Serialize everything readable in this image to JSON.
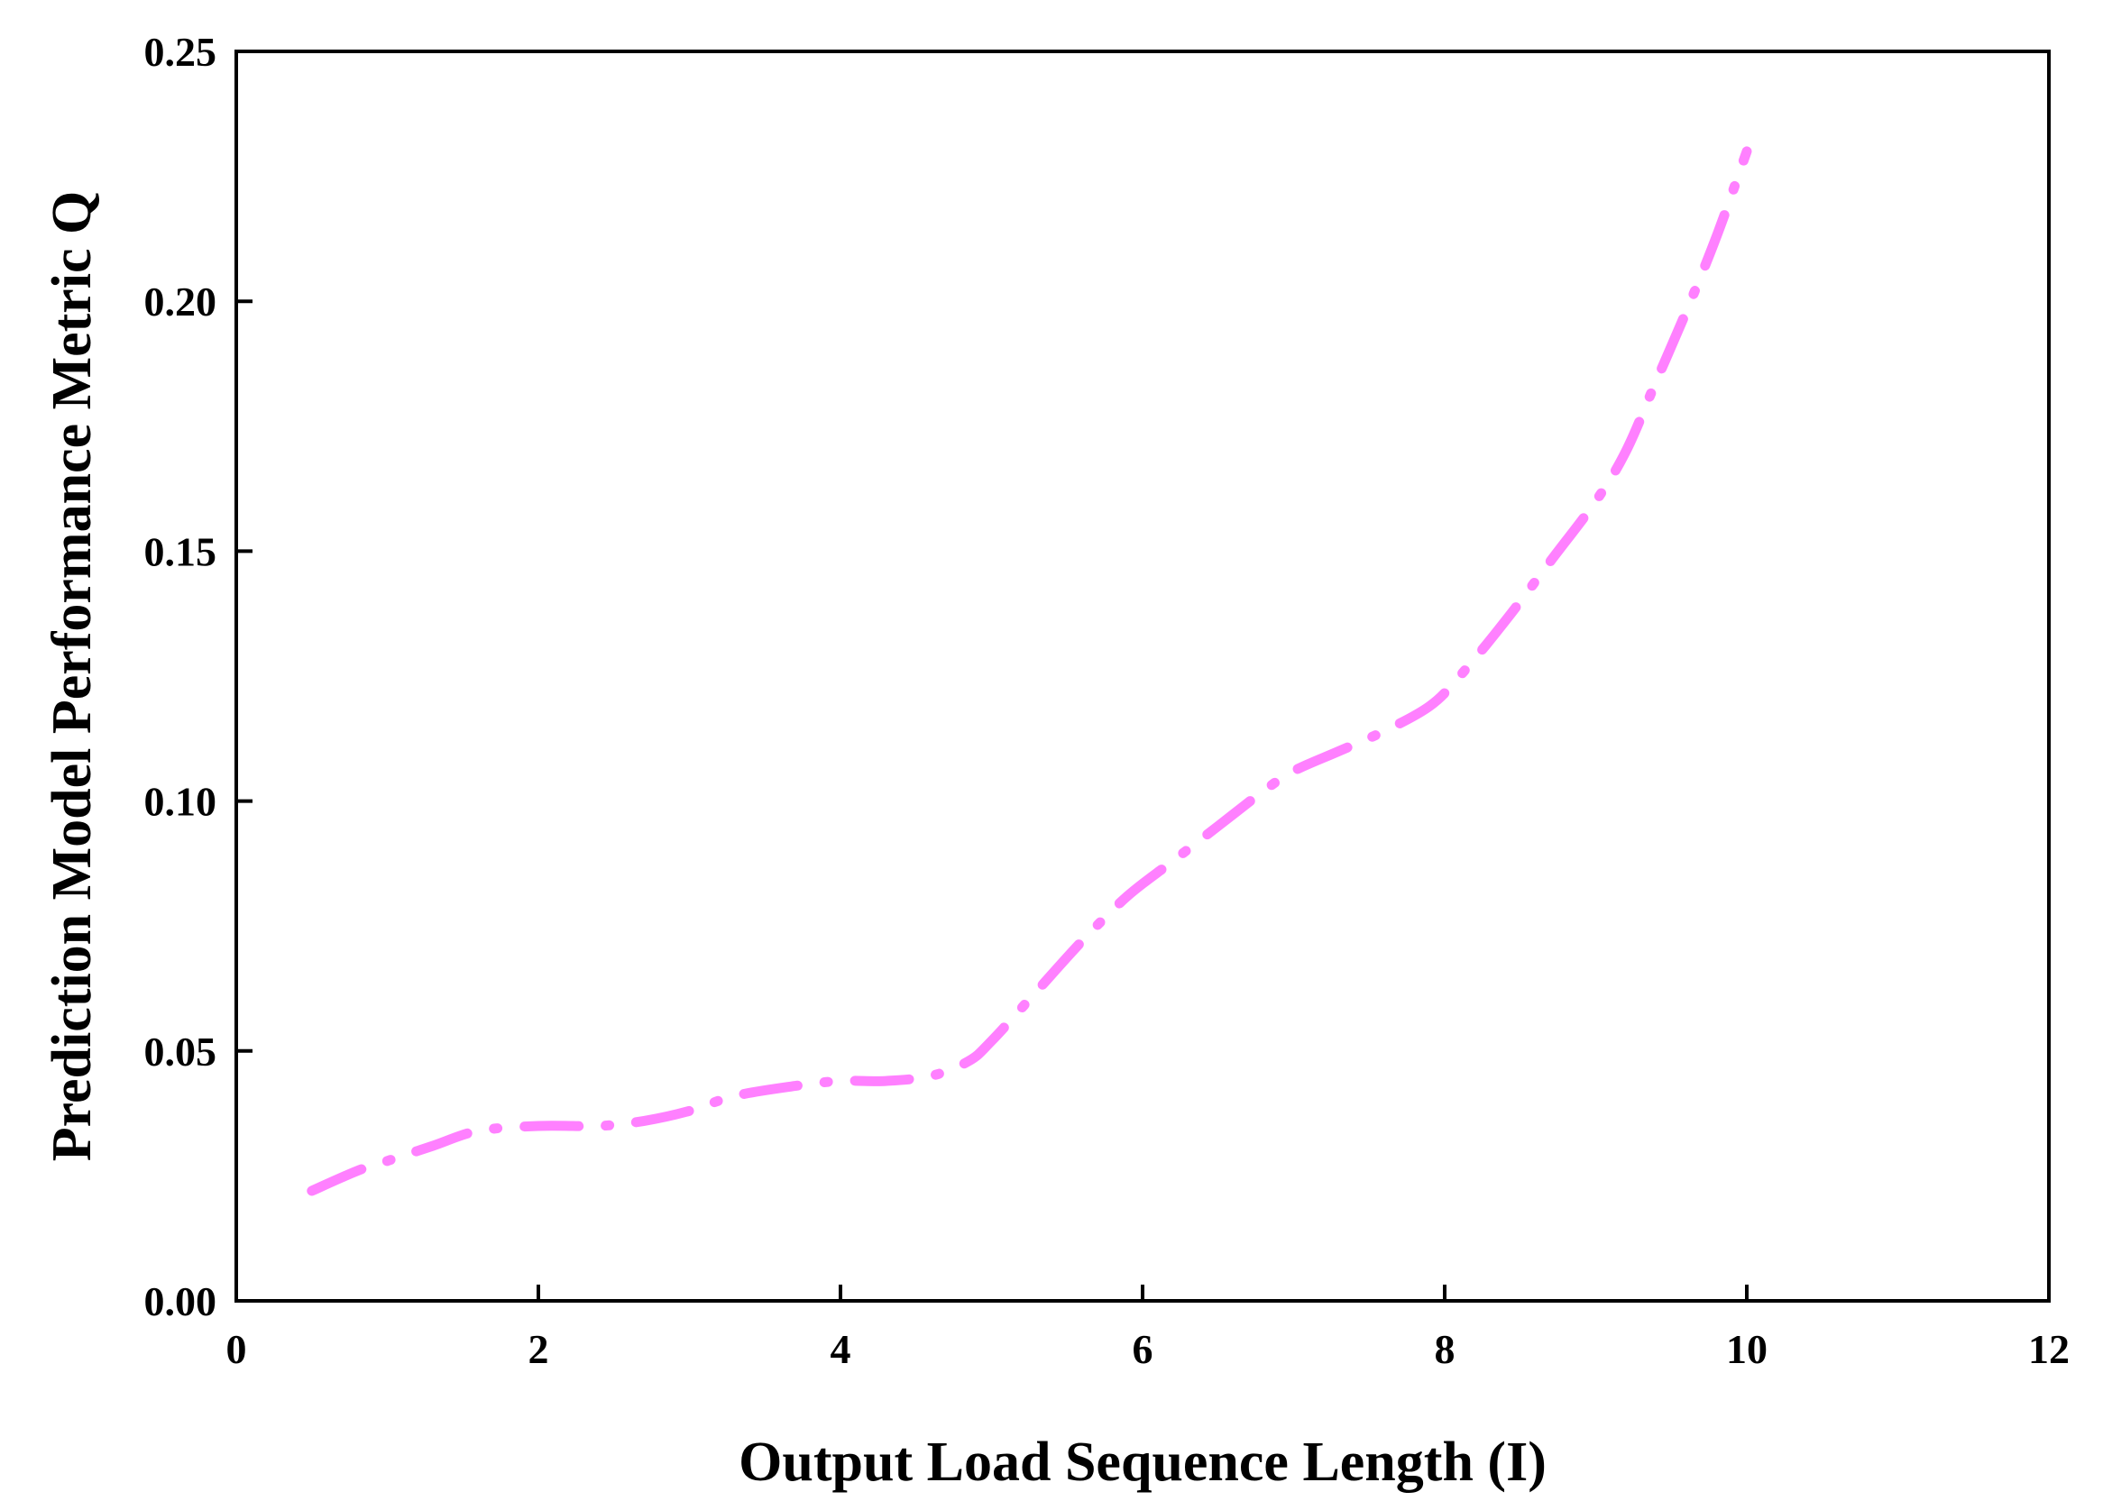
{
  "chart_data": {
    "type": "line",
    "title": "",
    "xlabel": "Output Load Sequence Length (I)",
    "ylabel": "Prediction Model Performance Metric Q",
    "xlim": [
      0,
      12
    ],
    "ylim": [
      0,
      0.25
    ],
    "x_ticks": [
      "0",
      "2",
      "4",
      "6",
      "8",
      "10",
      "12"
    ],
    "y_ticks": [
      "0.00",
      "0.05",
      "0.10",
      "0.15",
      "0.20",
      "0.25"
    ],
    "grid": false,
    "line_style": "dash-dot",
    "series": [
      {
        "color": "#ff80ff",
        "points": [
          [
            0.5,
            0.022
          ],
          [
            0.8,
            0.026
          ],
          [
            1.0,
            0.028
          ],
          [
            1.3,
            0.031
          ],
          [
            1.6,
            0.034
          ],
          [
            2.0,
            0.035
          ],
          [
            2.4,
            0.035
          ],
          [
            2.7,
            0.036
          ],
          [
            3.0,
            0.038
          ],
          [
            3.3,
            0.041
          ],
          [
            3.7,
            0.043
          ],
          [
            4.0,
            0.044
          ],
          [
            4.3,
            0.044
          ],
          [
            4.6,
            0.045
          ],
          [
            4.85,
            0.048
          ],
          [
            5.0,
            0.052
          ],
          [
            5.3,
            0.062
          ],
          [
            5.6,
            0.072
          ],
          [
            5.9,
            0.081
          ],
          [
            6.2,
            0.088
          ],
          [
            6.5,
            0.095
          ],
          [
            6.8,
            0.102
          ],
          [
            7.0,
            0.106
          ],
          [
            7.3,
            0.11
          ],
          [
            7.6,
            0.114
          ],
          [
            7.9,
            0.119
          ],
          [
            8.1,
            0.125
          ],
          [
            8.4,
            0.136
          ],
          [
            8.7,
            0.148
          ],
          [
            9.0,
            0.16
          ],
          [
            9.2,
            0.17
          ],
          [
            9.4,
            0.184
          ],
          [
            9.6,
            0.198
          ],
          [
            9.8,
            0.213
          ],
          [
            10.0,
            0.23
          ]
        ]
      }
    ]
  }
}
